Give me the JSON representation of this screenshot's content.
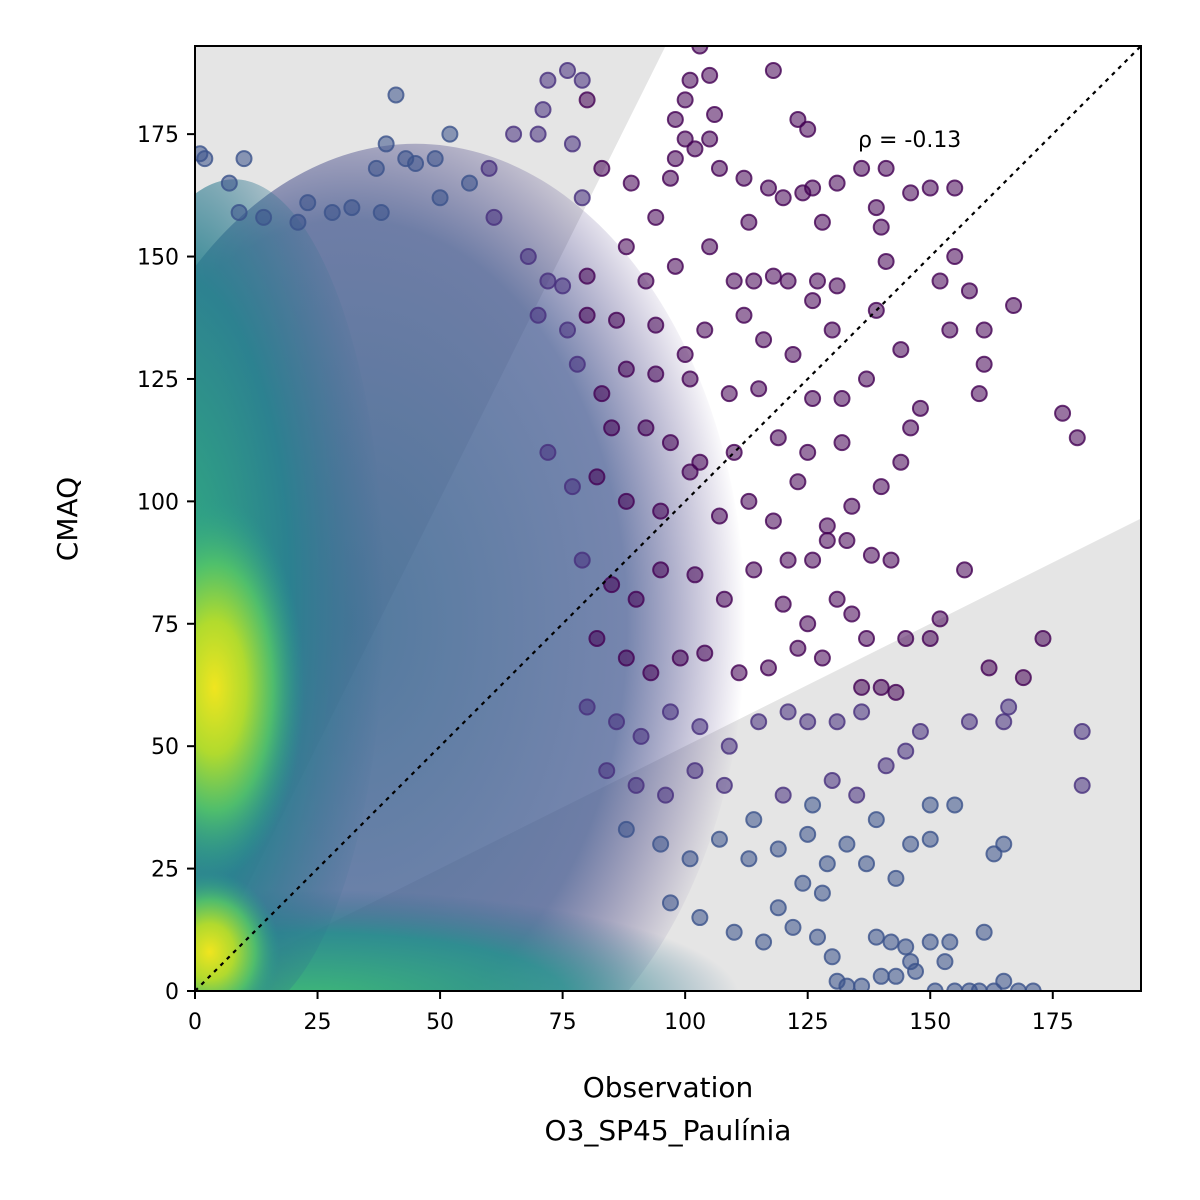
{
  "chart_data": {
    "type": "scatter",
    "title": "",
    "xlabel": "Observation",
    "xlabel_sub": "O3_SP45_Paulínia",
    "ylabel": "CMAQ",
    "xlim": [
      0,
      193
    ],
    "ylim": [
      0,
      193
    ],
    "xticks": [
      0,
      25,
      50,
      75,
      100,
      125,
      150,
      175
    ],
    "yticks": [
      0,
      25,
      50,
      75,
      100,
      125,
      150,
      175
    ],
    "xtick_labels": [
      "0",
      "25",
      "50",
      "75",
      "100",
      "125",
      "150",
      "175"
    ],
    "ytick_labels": [
      "0",
      "25",
      "50",
      "75",
      "100",
      "125",
      "150",
      "175"
    ],
    "annotation": "ρ = -0.13",
    "reference_line": {
      "type": "identity",
      "style": "dotted",
      "color": "#000000"
    },
    "shaded_regions": {
      "color": "#e5e5e5",
      "description": "outside factor-of-2 band",
      "upper_left": [
        [
          0,
          193
        ],
        [
          96,
          193
        ],
        [
          0,
          0
        ]
      ],
      "lower_right": [
        [
          0,
          0
        ],
        [
          193,
          0
        ],
        [
          193,
          96.5
        ]
      ]
    },
    "colormap": "viridis (density)",
    "colors": {
      "point_low_density": "#440154",
      "point_mid_density": "#31688e",
      "point_high_density": "#fde725",
      "grey_region": "#e5e5e5"
    },
    "density_regions": [
      {
        "name": "dense-low-obs-core",
        "x": [
          0,
          12
        ],
        "y": [
          40,
          85
        ],
        "density": "very high"
      },
      {
        "name": "dense-low-obs-column",
        "x": [
          0,
          30
        ],
        "y": [
          0,
          150
        ],
        "density": "high"
      },
      {
        "name": "dense-bottom-band",
        "x": [
          0,
          110
        ],
        "y": [
          0,
          15
        ],
        "density": "high"
      },
      {
        "name": "mid-cloud",
        "x": [
          10,
          90
        ],
        "y": [
          0,
          160
        ],
        "density": "medium"
      }
    ],
    "points": [
      [
        41,
        183
      ],
      [
        72,
        186
      ],
      [
        76,
        188
      ],
      [
        79,
        186
      ],
      [
        80,
        182
      ],
      [
        101,
        186
      ],
      [
        103,
        193
      ],
      [
        105,
        187
      ],
      [
        118,
        188
      ],
      [
        100,
        182
      ],
      [
        98,
        178
      ],
      [
        106,
        179
      ],
      [
        1,
        171
      ],
      [
        2,
        170
      ],
      [
        10,
        170
      ],
      [
        37,
        168
      ],
      [
        39,
        173
      ],
      [
        43,
        170
      ],
      [
        49,
        170
      ],
      [
        52,
        175
      ],
      [
        60,
        168
      ],
      [
        65,
        175
      ],
      [
        70,
        175
      ],
      [
        71,
        180
      ],
      [
        77,
        173
      ],
      [
        83,
        168
      ],
      [
        100,
        174
      ],
      [
        98,
        170
      ],
      [
        105,
        174
      ],
      [
        102,
        172
      ],
      [
        107,
        168
      ],
      [
        97,
        166
      ],
      [
        112,
        166
      ],
      [
        123,
        178
      ],
      [
        125,
        176
      ],
      [
        136,
        168
      ],
      [
        141,
        168
      ],
      [
        7,
        165
      ],
      [
        9,
        159
      ],
      [
        14,
        158
      ],
      [
        21,
        157
      ],
      [
        23,
        161
      ],
      [
        28,
        159
      ],
      [
        32,
        160
      ],
      [
        38,
        159
      ],
      [
        45,
        169
      ],
      [
        50,
        162
      ],
      [
        56,
        165
      ],
      [
        61,
        158
      ],
      [
        79,
        162
      ],
      [
        89,
        165
      ],
      [
        94,
        158
      ],
      [
        117,
        164
      ],
      [
        120,
        162
      ],
      [
        124,
        163
      ],
      [
        126,
        164
      ],
      [
        131,
        165
      ],
      [
        146,
        163
      ],
      [
        150,
        164
      ],
      [
        155,
        164
      ],
      [
        139,
        160
      ],
      [
        140,
        156
      ],
      [
        128,
        157
      ],
      [
        113,
        157
      ],
      [
        68,
        150
      ],
      [
        72,
        145
      ],
      [
        75,
        144
      ],
      [
        80,
        146
      ],
      [
        88,
        152
      ],
      [
        92,
        145
      ],
      [
        98,
        148
      ],
      [
        105,
        152
      ],
      [
        110,
        145
      ],
      [
        114,
        145
      ],
      [
        118,
        146
      ],
      [
        121,
        145
      ],
      [
        127,
        145
      ],
      [
        131,
        144
      ],
      [
        141,
        149
      ],
      [
        152,
        145
      ],
      [
        155,
        150
      ],
      [
        158,
        143
      ],
      [
        167,
        140
      ],
      [
        139,
        139
      ],
      [
        161,
        135
      ],
      [
        154,
        135
      ],
      [
        144,
        131
      ],
      [
        137,
        125
      ],
      [
        161,
        128
      ],
      [
        70,
        138
      ],
      [
        76,
        135
      ],
      [
        80,
        138
      ],
      [
        86,
        137
      ],
      [
        94,
        136
      ],
      [
        100,
        130
      ],
      [
        104,
        135
      ],
      [
        112,
        138
      ],
      [
        116,
        133
      ],
      [
        122,
        130
      ],
      [
        126,
        141
      ],
      [
        130,
        135
      ],
      [
        78,
        128
      ],
      [
        83,
        122
      ],
      [
        88,
        127
      ],
      [
        94,
        126
      ],
      [
        101,
        125
      ],
      [
        109,
        122
      ],
      [
        115,
        123
      ],
      [
        126,
        121
      ],
      [
        132,
        121
      ],
      [
        160,
        122
      ],
      [
        177,
        118
      ],
      [
        180,
        113
      ],
      [
        85,
        115
      ],
      [
        92,
        115
      ],
      [
        97,
        112
      ],
      [
        103,
        108
      ],
      [
        110,
        110
      ],
      [
        119,
        113
      ],
      [
        125,
        110
      ],
      [
        132,
        112
      ],
      [
        146,
        115
      ],
      [
        148,
        119
      ],
      [
        144,
        108
      ],
      [
        72,
        110
      ],
      [
        77,
        103
      ],
      [
        82,
        105
      ],
      [
        88,
        100
      ],
      [
        95,
        98
      ],
      [
        101,
        106
      ],
      [
        107,
        97
      ],
      [
        113,
        100
      ],
      [
        118,
        96
      ],
      [
        123,
        104
      ],
      [
        129,
        95
      ],
      [
        134,
        99
      ],
      [
        140,
        103
      ],
      [
        138,
        89
      ],
      [
        142,
        88
      ],
      [
        129,
        92
      ],
      [
        133,
        92
      ],
      [
        126,
        88
      ],
      [
        121,
        88
      ],
      [
        157,
        86
      ],
      [
        79,
        88
      ],
      [
        85,
        83
      ],
      [
        90,
        80
      ],
      [
        95,
        86
      ],
      [
        102,
        85
      ],
      [
        108,
        80
      ],
      [
        114,
        86
      ],
      [
        120,
        79
      ],
      [
        125,
        75
      ],
      [
        131,
        80
      ],
      [
        134,
        77
      ],
      [
        137,
        72
      ],
      [
        82,
        72
      ],
      [
        88,
        68
      ],
      [
        93,
        65
      ],
      [
        99,
        68
      ],
      [
        104,
        69
      ],
      [
        111,
        65
      ],
      [
        117,
        66
      ],
      [
        123,
        70
      ],
      [
        128,
        68
      ],
      [
        136,
        62
      ],
      [
        145,
        72
      ],
      [
        150,
        72
      ],
      [
        152,
        76
      ],
      [
        80,
        58
      ],
      [
        86,
        55
      ],
      [
        91,
        52
      ],
      [
        97,
        57
      ],
      [
        103,
        54
      ],
      [
        109,
        50
      ],
      [
        115,
        55
      ],
      [
        121,
        57
      ],
      [
        125,
        55
      ],
      [
        131,
        55
      ],
      [
        136,
        57
      ],
      [
        140,
        62
      ],
      [
        143,
        61
      ],
      [
        158,
        55
      ],
      [
        162,
        66
      ],
      [
        166,
        58
      ],
      [
        165,
        55
      ],
      [
        169,
        64
      ],
      [
        173,
        72
      ],
      [
        181,
        53
      ],
      [
        181,
        42
      ],
      [
        84,
        45
      ],
      [
        90,
        42
      ],
      [
        96,
        40
      ],
      [
        102,
        45
      ],
      [
        108,
        42
      ],
      [
        114,
        35
      ],
      [
        120,
        40
      ],
      [
        126,
        38
      ],
      [
        130,
        43
      ],
      [
        135,
        40
      ],
      [
        141,
        46
      ],
      [
        145,
        49
      ],
      [
        148,
        53
      ],
      [
        88,
        33
      ],
      [
        95,
        30
      ],
      [
        101,
        27
      ],
      [
        107,
        31
      ],
      [
        113,
        27
      ],
      [
        119,
        29
      ],
      [
        125,
        32
      ],
      [
        129,
        26
      ],
      [
        133,
        30
      ],
      [
        137,
        26
      ],
      [
        139,
        35
      ],
      [
        146,
        30
      ],
      [
        150,
        38
      ],
      [
        155,
        38
      ],
      [
        150,
        31
      ],
      [
        163,
        28
      ],
      [
        165,
        30
      ],
      [
        143,
        23
      ],
      [
        128,
        20
      ],
      [
        124,
        22
      ],
      [
        119,
        17
      ],
      [
        97,
        18
      ],
      [
        103,
        15
      ],
      [
        110,
        12
      ],
      [
        116,
        10
      ],
      [
        122,
        13
      ],
      [
        127,
        11
      ],
      [
        130,
        7
      ],
      [
        139,
        11
      ],
      [
        142,
        10
      ],
      [
        145,
        9
      ],
      [
        147,
        4
      ],
      [
        146,
        6
      ],
      [
        150,
        10
      ],
      [
        153,
        6
      ],
      [
        154,
        10
      ],
      [
        161,
        12
      ],
      [
        140,
        3
      ],
      [
        143,
        3
      ],
      [
        136,
        1
      ],
      [
        133,
        1
      ],
      [
        131,
        2
      ],
      [
        151,
        0
      ],
      [
        155,
        0
      ],
      [
        158,
        0
      ],
      [
        160,
        0
      ],
      [
        163,
        0
      ],
      [
        165,
        2
      ],
      [
        168,
        0
      ],
      [
        171,
        0
      ]
    ]
  }
}
